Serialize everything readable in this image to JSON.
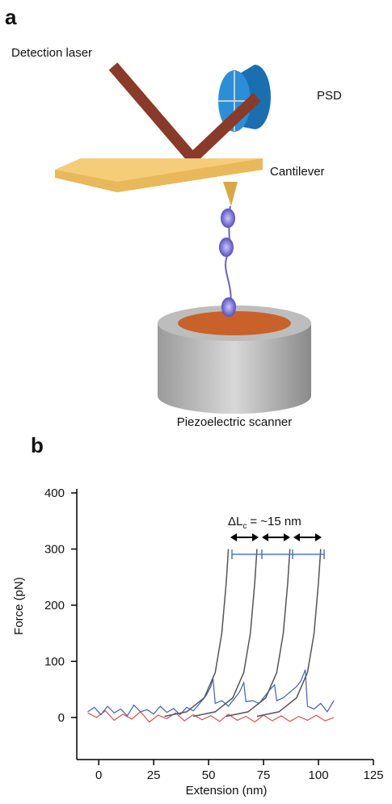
{
  "panel_a": {
    "label": "a",
    "labels": {
      "laser": "Detection laser",
      "psd": "PSD",
      "cantilever": "Cantilever",
      "scanner": "Piezoelectric scanner"
    }
  },
  "panel_b": {
    "label": "b"
  },
  "chart_data": {
    "type": "line",
    "xlabel": "Extension (nm)",
    "ylabel": "Force (pN)",
    "annotation": {
      "symbol": "ΔL",
      "subscript": "c",
      "text": "= ~15 nm"
    },
    "xlim": [
      -10,
      125
    ],
    "ylim": [
      -75,
      400
    ],
    "xticks": [
      0,
      25,
      50,
      75,
      100,
      125
    ],
    "yticks": [
      0,
      100,
      200,
      300,
      400
    ],
    "series": [
      {
        "color": "#e05050",
        "x": [
          -5,
          -1,
          3,
          7,
          11,
          15,
          19,
          23,
          27,
          31,
          35,
          39,
          43,
          47,
          51,
          55,
          59,
          63,
          67,
          71,
          75,
          79,
          83,
          87,
          91,
          95,
          99,
          103,
          107
        ],
        "values": [
          8,
          0,
          12,
          -5,
          6,
          -3,
          10,
          -8,
          4,
          -2,
          8,
          -6,
          5,
          -4,
          3,
          -7,
          6,
          -5,
          2,
          -8,
          4,
          -6,
          3,
          -7,
          2,
          -5,
          4,
          -6,
          0
        ]
      },
      {
        "color": "#3a5fbf",
        "x": [
          -5,
          -2,
          1,
          4,
          7,
          10,
          13,
          16,
          19,
          22,
          25,
          28,
          31,
          34,
          37,
          40,
          43,
          46,
          49,
          51,
          52,
          53,
          56,
          59,
          62,
          64,
          66,
          67,
          70,
          73,
          76,
          78,
          80,
          81,
          84,
          87,
          90,
          92,
          94,
          95,
          98,
          101,
          104,
          107
        ],
        "values": [
          10,
          18,
          5,
          20,
          8,
          15,
          3,
          22,
          10,
          14,
          6,
          20,
          9,
          16,
          5,
          18,
          12,
          25,
          40,
          55,
          70,
          25,
          30,
          20,
          35,
          45,
          62,
          28,
          30,
          25,
          40,
          50,
          58,
          30,
          35,
          45,
          55,
          65,
          85,
          20,
          15,
          25,
          10,
          30
        ]
      },
      {
        "color": "#555555",
        "x": [
          30,
          40,
          48,
          53,
          56,
          58,
          59
        ],
        "values": [
          2,
          10,
          35,
          80,
          150,
          240,
          300
        ]
      },
      {
        "color": "#555555",
        "x": [
          43,
          53,
          61,
          66,
          69,
          71,
          72
        ],
        "values": [
          2,
          10,
          35,
          80,
          150,
          240,
          300
        ]
      },
      {
        "color": "#555555",
        "x": [
          58,
          68,
          76,
          81,
          84,
          86,
          87
        ],
        "values": [
          2,
          10,
          35,
          80,
          150,
          240,
          300
        ]
      },
      {
        "color": "#555555",
        "x": [
          72,
          82,
          90,
          95,
          98,
          100,
          101
        ],
        "values": [
          2,
          10,
          35,
          80,
          150,
          240,
          300
        ]
      }
    ]
  }
}
